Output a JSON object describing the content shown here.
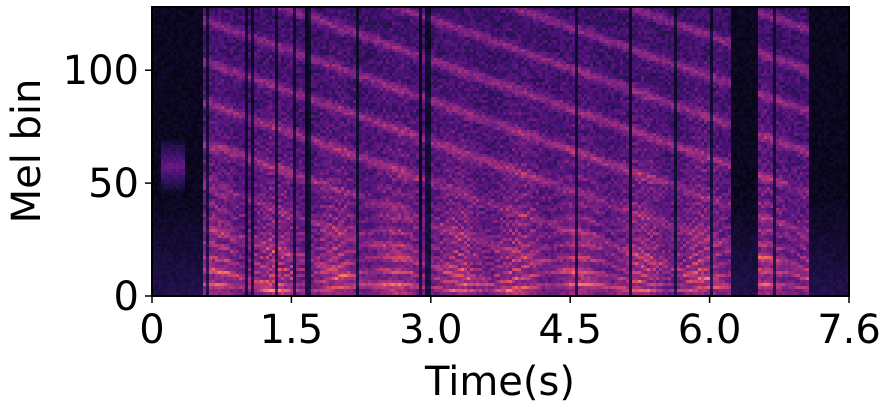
{
  "chart_data": {
    "type": "heatmap",
    "title": "",
    "xlabel": "Time(s)",
    "ylabel": "Mel bin",
    "xlim": [
      0,
      7.6
    ],
    "ylim": [
      0,
      128
    ],
    "x_ticks": [
      {
        "value": 0,
        "label": "0"
      },
      {
        "value": 1.52,
        "label": "1.5"
      },
      {
        "value": 3.04,
        "label": "3.0"
      },
      {
        "value": 4.56,
        "label": "4.5"
      },
      {
        "value": 6.08,
        "label": "6.0"
      },
      {
        "value": 7.6,
        "label": "7.6"
      }
    ],
    "y_ticks": [
      {
        "value": 0,
        "label": "0"
      },
      {
        "value": 50,
        "label": "50"
      },
      {
        "value": 100,
        "label": "100"
      }
    ],
    "colormap": "magma",
    "grid": false,
    "speech_segments_s": [
      [
        0.57,
        1.65
      ],
      [
        1.68,
        2.9
      ],
      [
        2.92,
        4.03
      ],
      [
        4.05,
        5.2
      ],
      [
        5.22,
        6.3
      ],
      [
        6.6,
        7.15
      ]
    ]
  }
}
